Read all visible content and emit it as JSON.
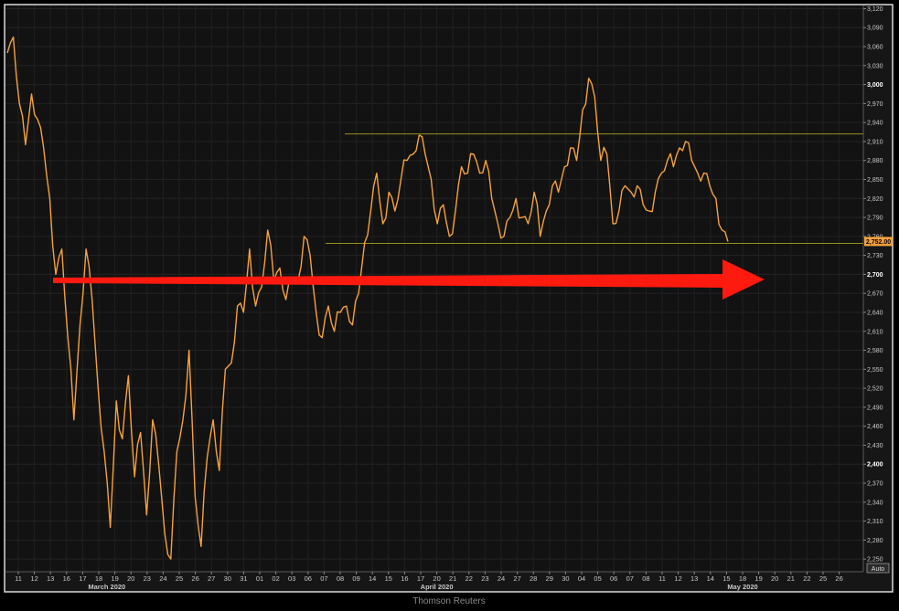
{
  "chart_data": {
    "type": "line",
    "title": "",
    "xlabel": "",
    "ylabel": "",
    "ylim": [
      2230,
      3125
    ],
    "y_ticks": [
      2250,
      2280,
      2310,
      2340,
      2370,
      2400,
      2430,
      2460,
      2490,
      2520,
      2550,
      2580,
      2610,
      2640,
      2670,
      2700,
      2730,
      2760,
      2790,
      2820,
      2850,
      2880,
      2910,
      2940,
      2970,
      3000,
      3030,
      3060,
      3090,
      3120
    ],
    "y_tick_labels": [
      "2,250",
      "2,280",
      "2,310",
      "2,340",
      "2,370",
      "2,400",
      "2,430",
      "2,460",
      "2,490",
      "2,520",
      "2,550",
      "2,580",
      "2,610",
      "2,640",
      "2,670",
      "2,700",
      "2,730",
      "2,760",
      "2,790",
      "2,820",
      "2,850",
      "2,880",
      "2,910",
      "2,940",
      "2,970",
      "3,000",
      "3,030",
      "3,060",
      "3,090",
      "3,120"
    ],
    "y_bold_ticks": [
      "2,400",
      "2,700",
      "3,000"
    ],
    "x_tick_labels": [
      "11",
      "12",
      "13",
      "16",
      "17",
      "18",
      "19",
      "20",
      "23",
      "24",
      "25",
      "26",
      "27",
      "30",
      "31",
      "01",
      "02",
      "03",
      "06",
      "07",
      "08",
      "09",
      "14",
      "15",
      "16",
      "17",
      "20",
      "21",
      "22",
      "23",
      "24",
      "27",
      "28",
      "29",
      "30",
      "04",
      "05",
      "06",
      "07",
      "08",
      "11",
      "12",
      "13",
      "14",
      "15",
      "18",
      "19",
      "20",
      "21",
      "22",
      "25",
      "26"
    ],
    "month_labels": [
      "March 2020",
      "April 2020",
      "May 2020"
    ],
    "series": [
      {
        "color": "#f7a23a",
        "points": [
          [
            0,
            3050
          ],
          [
            1,
            3075
          ],
          [
            2,
            2970
          ],
          [
            3,
            2905
          ],
          [
            4,
            2985
          ],
          [
            5,
            2945
          ],
          [
            6,
            2900
          ],
          [
            7,
            2820
          ],
          [
            8,
            2700
          ],
          [
            9,
            2740
          ],
          [
            10,
            2600
          ],
          [
            11,
            2470
          ],
          [
            12,
            2620
          ],
          [
            13,
            2740
          ],
          [
            14,
            2660
          ],
          [
            15,
            2520
          ],
          [
            16,
            2420
          ],
          [
            17,
            2300
          ],
          [
            18,
            2500
          ],
          [
            19,
            2440
          ],
          [
            20,
            2540
          ],
          [
            21,
            2380
          ],
          [
            22,
            2450
          ],
          [
            23,
            2320
          ],
          [
            24,
            2470
          ],
          [
            25,
            2400
          ],
          [
            26,
            2290
          ],
          [
            27,
            2250
          ],
          [
            28,
            2420
          ],
          [
            29,
            2470
          ],
          [
            30,
            2580
          ],
          [
            31,
            2350
          ],
          [
            32,
            2270
          ],
          [
            33,
            2410
          ],
          [
            34,
            2470
          ],
          [
            35,
            2390
          ],
          [
            36,
            2550
          ],
          [
            37,
            2560
          ],
          [
            38,
            2650
          ],
          [
            39,
            2640
          ],
          [
            40,
            2740
          ],
          [
            41,
            2650
          ],
          [
            42,
            2680
          ],
          [
            43,
            2770
          ],
          [
            44,
            2690
          ],
          [
            45,
            2710
          ],
          [
            46,
            2660
          ],
          [
            47,
            2690
          ],
          [
            48,
            2690
          ],
          [
            49,
            2760
          ],
          [
            50,
            2730
          ],
          [
            51,
            2640
          ],
          [
            52,
            2600
          ],
          [
            53,
            2650
          ],
          [
            54,
            2610
          ],
          [
            55,
            2640
          ],
          [
            56,
            2650
          ],
          [
            57,
            2620
          ],
          [
            58,
            2670
          ],
          [
            59,
            2750
          ],
          [
            60,
            2800
          ],
          [
            61,
            2860
          ],
          [
            62,
            2780
          ],
          [
            63,
            2830
          ],
          [
            64,
            2800
          ],
          [
            65,
            2850
          ],
          [
            66,
            2880
          ],
          [
            67,
            2890
          ],
          [
            68,
            2920
          ],
          [
            69,
            2890
          ],
          [
            70,
            2850
          ],
          [
            71,
            2780
          ],
          [
            72,
            2810
          ],
          [
            73,
            2760
          ],
          [
            74,
            2800
          ],
          [
            75,
            2870
          ],
          [
            76,
            2860
          ],
          [
            77,
            2890
          ],
          [
            78,
            2860
          ],
          [
            79,
            2880
          ],
          [
            80,
            2820
          ],
          [
            81,
            2780
          ],
          [
            82,
            2760
          ],
          [
            83,
            2790
          ],
          [
            84,
            2820
          ],
          [
            85,
            2790
          ],
          [
            86,
            2780
          ],
          [
            87,
            2830
          ],
          [
            88,
            2760
          ],
          [
            89,
            2800
          ],
          [
            90,
            2840
          ],
          [
            91,
            2830
          ],
          [
            92,
            2870
          ],
          [
            93,
            2900
          ],
          [
            94,
            2880
          ],
          [
            95,
            2960
          ],
          [
            96,
            3010
          ],
          [
            97,
            2980
          ],
          [
            98,
            2880
          ],
          [
            99,
            2890
          ],
          [
            100,
            2780
          ],
          [
            101,
            2800
          ],
          [
            102,
            2840
          ],
          [
            103,
            2830
          ],
          [
            104,
            2840
          ],
          [
            105,
            2810
          ],
          [
            106,
            2800
          ],
          [
            107,
            2830
          ],
          [
            108,
            2860
          ],
          [
            109,
            2880
          ],
          [
            110,
            2870
          ],
          [
            111,
            2900
          ],
          [
            112,
            2910
          ],
          [
            113,
            2880
          ],
          [
            114,
            2860
          ],
          [
            115,
            2860
          ],
          [
            116,
            2840
          ],
          [
            117,
            2820
          ],
          [
            118,
            2770
          ],
          [
            119,
            2752
          ]
        ]
      }
    ],
    "horizontal_lines": [
      {
        "y": 2922,
        "color": "#9a8f1e"
      },
      {
        "y": 2749,
        "color": "#9a8f1e"
      }
    ],
    "annotation_arrow": {
      "from": [
        11,
        2692
      ],
      "to": [
        163,
        2692
      ],
      "color": "#ff1a10"
    },
    "last_value_label": "2,752.00",
    "last_value": 2752.0,
    "grid": true
  },
  "chart_ui": {
    "auto_button": "Auto",
    "credit": "Thomson Reuters"
  }
}
